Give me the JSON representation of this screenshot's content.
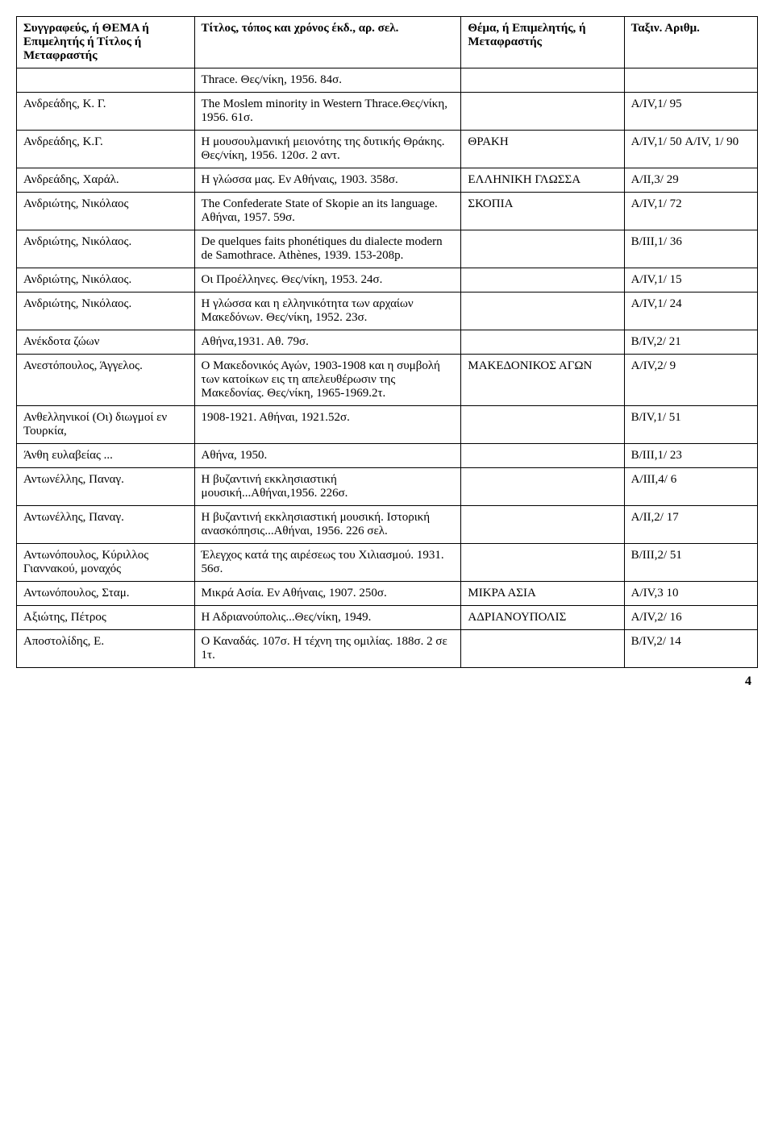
{
  "headers": {
    "c1": "Συγγραφεύς, ή ΘΕΜΑ ή Επιμελητής ή Τίτλος ή Μεταφραστής",
    "c2": "Τίτλος, τόπος και χρόνος έκδ., αρ. σελ.",
    "c3": "Θέμα, ή Επιμελητής, ή Μεταφραστής",
    "c4": "Ταξιν. Αριθμ."
  },
  "rows": [
    {
      "c1": "",
      "c2": "Thrace. Θες/νίκη, 1956. 84σ.",
      "c3": "",
      "c4": ""
    },
    {
      "c1": "Ανδρεάδης, Κ. Γ.",
      "c2": "The Moslem minority in Western Thrace.Θες/νίκη, 1956. 61σ.",
      "c3": "",
      "c4": "Α/ΙV,1/ 95"
    },
    {
      "c1": "Ανδρεάδης, Κ.Γ.",
      "c2": "Η μουσουλμανική μειονότης της δυτικής Θράκης. Θες/νίκη, 1956. 120σ. 2 αντ.",
      "c3": "ΘΡΑΚΗ",
      "c4": "Α/ΙV,1/ 50 Α/ΙV, 1/ 90"
    },
    {
      "c1": "Ανδρεάδης, Χαράλ.",
      "c2": "Η γλώσσα μας. Εν Αθήναις, 1903. 358σ.",
      "c3": "ΕΛΛΗΝΙΚΗ ΓΛΩΣΣΑ",
      "c4": "Α/ΙΙ,3/ 29"
    },
    {
      "c1": "Ανδριώτης, Νικόλαος",
      "c2": "The Confederate State of Skopie an its language. Αθήναι, 1957. 59σ.",
      "c3": "ΣΚΟΠΙΑ",
      "c4": "Α/ΙV,1/ 72"
    },
    {
      "c1": "Ανδριώτης, Νικόλαος.",
      "c2": "De quelques faits phonétiques du dialecte modern de Samothrace. Athènes, 1939. 153-208p.",
      "c3": "",
      "c4": "Β/ΙΙΙ,1/ 36"
    },
    {
      "c1": "Ανδριώτης, Νικόλαος.",
      "c2": "Οι Προέλληνες. Θες/νίκη, 1953. 24σ.",
      "c3": "",
      "c4": "Α/ΙV,1/ 15"
    },
    {
      "c1": "Ανδριώτης, Νικόλαος.",
      "c2": "Η γλώσσα και η ελληνικότητα των αρχαίων Μακεδόνων. Θες/νίκη, 1952. 23σ.",
      "c3": "",
      "c4": "Α/ΙV,1/ 24"
    },
    {
      "c1": "Ανέκδοτα ζώων",
      "c2": "Αθήνα,1931. Αθ. 79σ.",
      "c3": "",
      "c4": "Β/ΙV,2/ 21"
    },
    {
      "c1": "Ανεστόπουλος, Άγγελος.",
      "c2": "Ο Μακεδονικός Αγών, 1903-1908 και η συμβολή των κατοίκων εις τη απελευθέρωσιν της Μακεδονίας. Θες/νίκη, 1965-1969.2τ.",
      "c3": "ΜΑΚΕΔΟΝΙΚΟΣ ΑΓΩΝ",
      "c4": "Α/ΙV,2/ 9"
    },
    {
      "c1": "Ανθελληνικοί (Οι) διωγμοί εν Τουρκία,",
      "c2": "1908-1921. Αθήναι, 1921.52σ.",
      "c3": "",
      "c4": "Β/ΙV,1/ 51"
    },
    {
      "c1": "Άνθη ευλαβείας ...",
      "c2": "Αθήνα, 1950.",
      "c3": "",
      "c4": "Β/ΙΙΙ,1/ 23"
    },
    {
      "c1": "Αντωνέλλης, Παναγ.",
      "c2": "Η βυζαντινή εκκλησιαστική μουσική...Αθήναι,1956. 226σ.",
      "c3": "",
      "c4": "Α/ΙΙΙ,4/ 6"
    },
    {
      "c1": "Αντωνέλλης, Παναγ.",
      "c2": " Η βυζαντινή εκκλησιαστική μουσική. Ιστορική ανασκόπησις...Αθήναι, 1956. 226 σελ.",
      "c3": "",
      "c4": "Α/ΙΙ,2/ 17"
    },
    {
      "c1": "Αντωνόπουλος, Κύριλλος Γιαννακού, μοναχός",
      "c2": "Έλεγχος κατά της αιρέσεως του Χιλιασμού. 1931. 56σ.",
      "c3": "",
      "c4": "Β/ΙΙΙ,2/ 51"
    },
    {
      "c1": "Αντωνόπουλος, Σταμ.",
      "c2": "Μικρά Ασία. Εν Αθήναις, 1907. 250σ.",
      "c3": "ΜΙΚΡΑ ΑΣΙΑ",
      "c4": "Α/ΙV,3 10"
    },
    {
      "c1": " Αξιώτης, Πέτρος",
      "c2": "Η Αδριανούπολις...Θες/νίκη, 1949.",
      "c3": "ΑΔΡΙΑΝΟΥΠΟΛΙΣ",
      "c4": "Α/ΙV,2/ 16"
    },
    {
      "c1": "Αποστολίδης, Ε.",
      "c2": "Ο Καναδάς. 107σ. Η τέχνη της ομιλίας. 188σ. 2 σε 1τ.",
      "c3": "",
      "c4": "Β/ΙV,2/ 14"
    }
  ],
  "page_number": "4"
}
